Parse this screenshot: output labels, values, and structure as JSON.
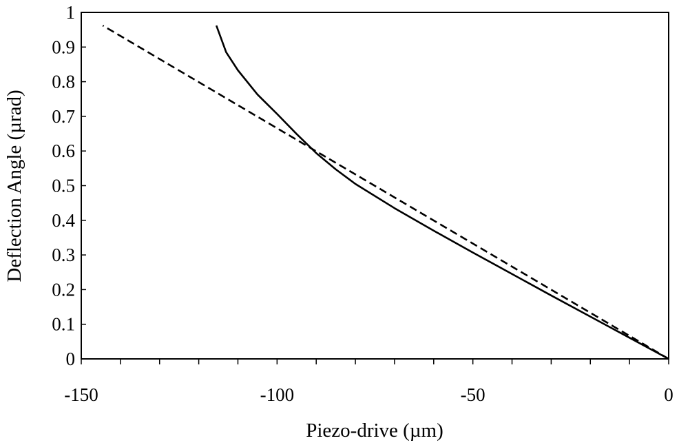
{
  "chart_data": {
    "type": "line",
    "title": "",
    "xlabel": "Piezo-drive (µm)",
    "ylabel": "Deflection Angle (µrad)",
    "xlim": [
      -150,
      0
    ],
    "ylim": [
      0,
      1
    ],
    "x_ticks": [
      -150,
      -100,
      -50,
      0
    ],
    "x_tick_labels": [
      "-150",
      "-100",
      "-50",
      "0"
    ],
    "x_minor_step": 10,
    "y_ticks": [
      0,
      0.1,
      0.2,
      0.3,
      0.4,
      0.5,
      0.6,
      0.7,
      0.8,
      0.9,
      1
    ],
    "y_tick_labels": [
      "0",
      "0.1",
      "0.2",
      "0.3",
      "0.4",
      "0.5",
      "0.6",
      "0.7",
      "0.8",
      "0.9",
      "1"
    ],
    "grid": false,
    "legend": "none",
    "series": [
      {
        "style": "solid",
        "color": "#000000",
        "x": [
          0,
          -10,
          -20,
          -30,
          -40,
          -50,
          -60,
          -70,
          -80,
          -85,
          -90,
          -95,
          -100,
          -105,
          -110,
          -113,
          -115.5
        ],
        "y": [
          0,
          0.061,
          0.122,
          0.183,
          0.245,
          0.307,
          0.37,
          0.435,
          0.505,
          0.547,
          0.594,
          0.649,
          0.707,
          0.763,
          0.833,
          0.885,
          0.962
        ]
      },
      {
        "style": "dashed",
        "color": "#000000",
        "x": [
          0,
          -144.5
        ],
        "y": [
          0,
          0.962
        ]
      }
    ]
  }
}
